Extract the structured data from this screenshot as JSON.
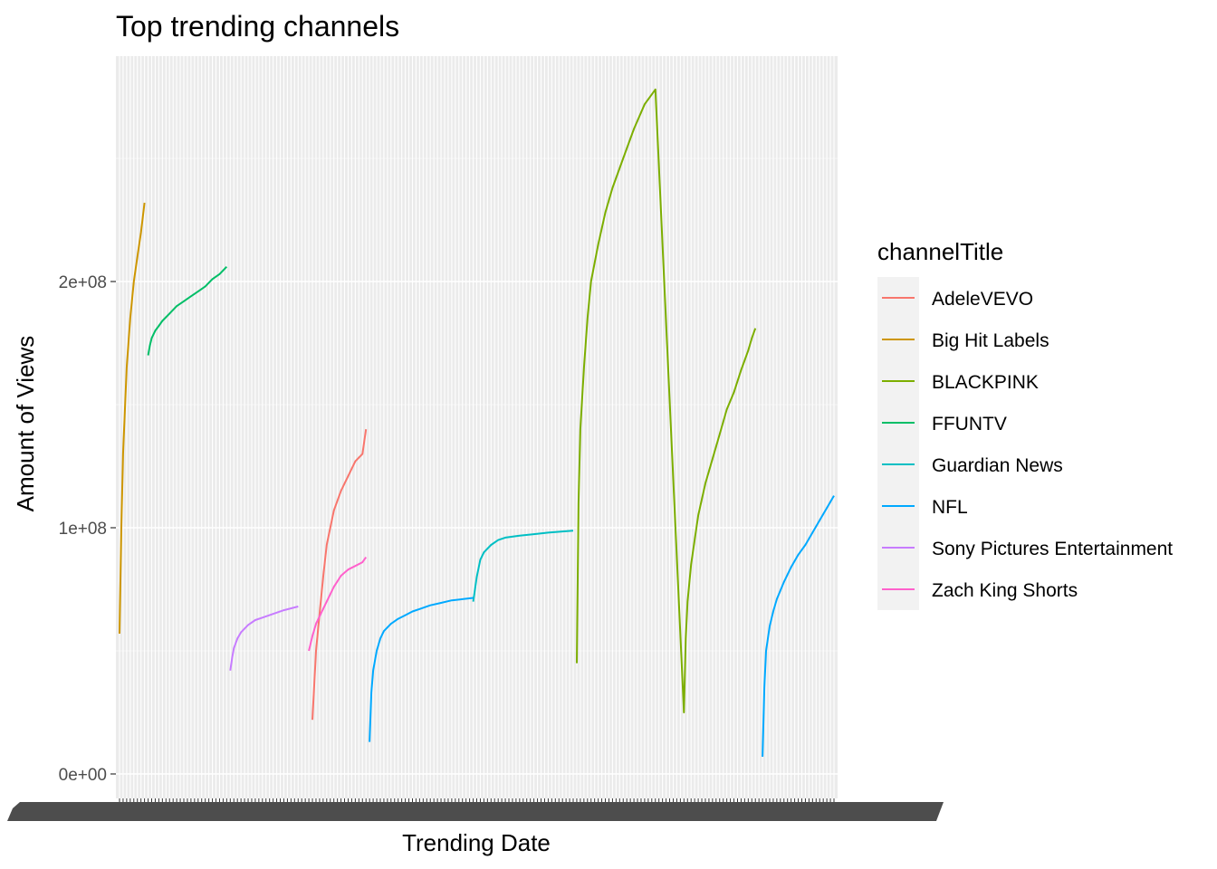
{
  "chart_data": {
    "type": "line",
    "title": "Top trending channels",
    "xlabel": "Trending Date",
    "ylabel": "Amount of Views",
    "x_scale": "discrete (trending dates, labels overplotted and unreadable)",
    "x_positions": [
      0,
      200
    ],
    "ylim": [
      0,
      275000000
    ],
    "y_ticks": [
      0,
      100000000,
      200000000
    ],
    "y_tick_labels": [
      "0e+00",
      "1e+08",
      "2e+08"
    ],
    "grid": true,
    "background": "#EBEBEB",
    "legend": {
      "title": "channelTitle",
      "placement": "right"
    },
    "series": [
      {
        "name": "AdeleVEVO",
        "color": "#F8766D",
        "x": [
          54,
          55,
          56,
          57,
          58,
          60,
          62,
          64,
          66,
          68,
          69
        ],
        "y": [
          22000000,
          50000000,
          65000000,
          80000000,
          93000000,
          107000000,
          115000000,
          121000000,
          127000000,
          130000000,
          140000000
        ]
      },
      {
        "name": "Big Hit Labels",
        "color": "#CD9600",
        "x": [
          0,
          0.5,
          1,
          2,
          3,
          4,
          5,
          6,
          7
        ],
        "y": [
          57000000,
          100000000,
          130000000,
          165000000,
          185000000,
          200000000,
          210000000,
          220000000,
          232000000
        ]
      },
      {
        "name": "BLACKPINK",
        "color": "#7CAE00",
        "x": [
          128,
          128.5,
          129,
          130,
          131,
          132,
          134,
          136,
          138,
          141,
          144,
          147,
          150,
          158,
          158.5,
          159,
          160,
          161,
          162,
          164,
          166,
          168,
          170,
          172,
          174,
          175,
          176,
          177,
          178
        ],
        "y": [
          45000000,
          110000000,
          140000000,
          165000000,
          185000000,
          200000000,
          215000000,
          228000000,
          238000000,
          250000000,
          262000000,
          272000000,
          278000000,
          25000000,
          55000000,
          70000000,
          85000000,
          95000000,
          105000000,
          118000000,
          128000000,
          138000000,
          148000000,
          155000000,
          164000000,
          168000000,
          172000000,
          177000000,
          181000000
        ]
      },
      {
        "name": "FFUNTV",
        "color": "#00BE67",
        "x": [
          8,
          8.5,
          9,
          10,
          11,
          12,
          14,
          16,
          18,
          20,
          22,
          24,
          26,
          28,
          30
        ],
        "y": [
          170000000,
          174000000,
          177000000,
          180000000,
          182000000,
          184000000,
          187000000,
          190000000,
          192000000,
          194000000,
          196000000,
          198000000,
          201000000,
          203000000,
          206000000
        ]
      },
      {
        "name": "Guardian News",
        "color": "#00BFC4",
        "x": [
          99,
          100,
          101,
          102,
          104,
          106,
          108,
          112,
          116,
          120,
          124,
          127
        ],
        "y": [
          70000000,
          80000000,
          87000000,
          90000000,
          93000000,
          95000000,
          96000000,
          96800000,
          97400000,
          98000000,
          98500000,
          98800000
        ]
      },
      {
        "name": "NFL",
        "color": "#00A9FF",
        "x": [
          70,
          70.5,
          71,
          72,
          73,
          74,
          76,
          78,
          80,
          82,
          84,
          87,
          90,
          93,
          96,
          99,
          180,
          180.5,
          181,
          182,
          183,
          184,
          186,
          188,
          190,
          192,
          194,
          196,
          198,
          200
        ],
        "y": [
          13000000,
          33000000,
          42000000,
          50000000,
          55000000,
          58000000,
          61000000,
          63000000,
          64500000,
          66000000,
          67000000,
          68500000,
          69500000,
          70500000,
          71000000,
          71500000,
          7000000,
          35000000,
          50000000,
          60000000,
          66000000,
          71000000,
          78000000,
          84000000,
          89000000,
          93000000,
          98000000,
          103000000,
          108000000,
          113000000
        ]
      },
      {
        "name": "Sony Pictures Entertainment",
        "color": "#C77CFF",
        "x": [
          31,
          31.5,
          32,
          33,
          34,
          36,
          38,
          40,
          43,
          46,
          50
        ],
        "y": [
          42000000,
          47000000,
          51000000,
          55000000,
          57500000,
          60500000,
          62500000,
          63500000,
          65000000,
          66500000,
          68000000
        ]
      },
      {
        "name": "Zach King Shorts",
        "color": "#FF61CC",
        "x": [
          53,
          54,
          55,
          56,
          58,
          60,
          62,
          64,
          66,
          68,
          69
        ],
        "y": [
          50000000,
          56000000,
          61000000,
          64000000,
          70000000,
          76000000,
          80500000,
          83000000,
          84500000,
          86000000,
          88000000
        ]
      }
    ]
  }
}
